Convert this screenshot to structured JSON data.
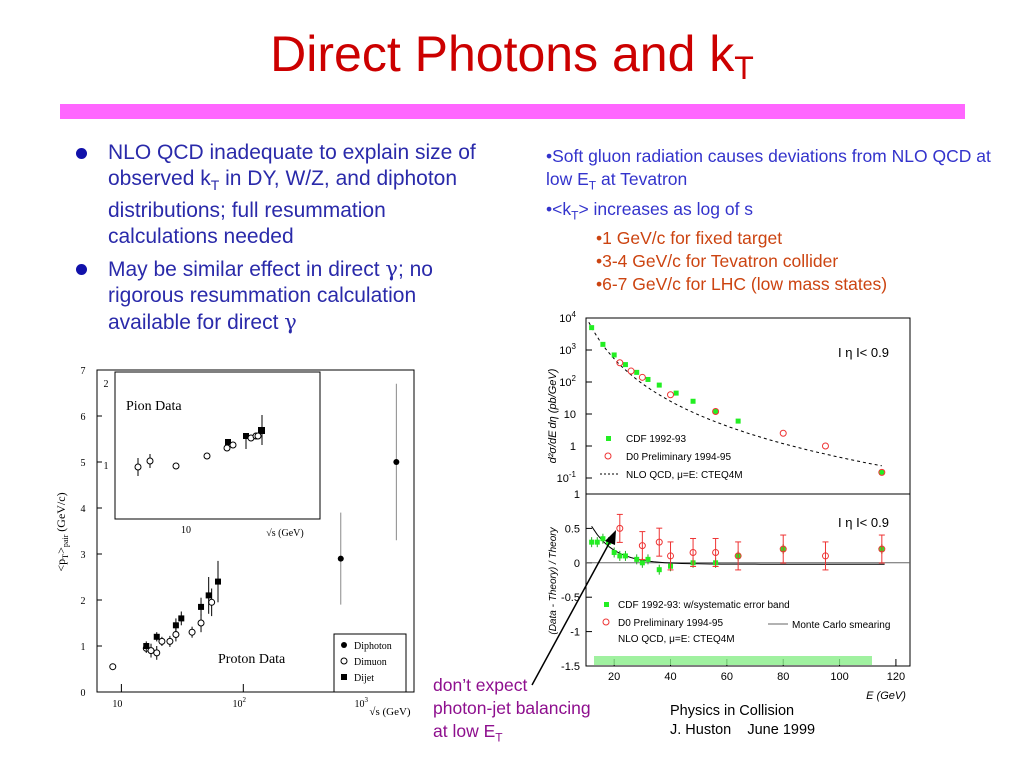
{
  "slide": {
    "title": "Direct Photons and k",
    "title_sub": "T",
    "accent_color": "#cc0000",
    "rule_color": "#ff66ff"
  },
  "bullets": {
    "b1_pre": "NLO QCD inadequate to explain size of observed k",
    "b1_sub": "T",
    "b1_post": " in DY, W/Z, and diphoton distributions; full resummation calculations needed",
    "b2_pre": "May be similar effect in direct ",
    "b2_sym1": "γ",
    "b2_mid": "; no rigorous  resummation calculation available for direct ",
    "b2_sym2": "γ"
  },
  "notes": {
    "n1": "•Soft gluon radiation causes deviations from NLO QCD at low E",
    "n1_sub": "T",
    "n1_post": " at Tevatron",
    "n2_pre": "•<k",
    "n2_sub": "T",
    "n2_post": "> increases as log of s",
    "n3": "•1 GeV/c for fixed target",
    "n4": "•3-4 GeV/c for Tevatron collider",
    "n5": "•6-7 GeV/c for LHC (low mass states)"
  },
  "annotation": {
    "line1": "don’t expect",
    "line2": "photon-jet balancing",
    "line3_pre": "at low E",
    "line3_sub": "T"
  },
  "credit": {
    "line1": "Physics in Collision",
    "line2": "J. Huston    June 1999"
  },
  "left_plot": {
    "y_label": "<p",
    "y_label_sub1": "T",
    "y_label_mid": ">",
    "y_label_sub2": "pair",
    "y_label_unit": " (GeV/c)",
    "x_label": "√s (GeV)",
    "y_ticks": [
      "0",
      "1",
      "2",
      "3",
      "4",
      "5",
      "6",
      "7"
    ],
    "x_ticks": [
      "10",
      "10",
      "10"
    ],
    "x_tick_exps": [
      "",
      "2",
      "3"
    ],
    "inset_title": "Pion Data",
    "inset_y_ticks": [
      "1",
      "2"
    ],
    "inset_x_tick": "10",
    "inset_x_label": "√s (GeV)",
    "main_label": "Proton Data",
    "legend": [
      "Diphoton",
      "Dimuon",
      "Dijet"
    ],
    "chart_data": {
      "type": "scatter",
      "title": "",
      "xlabel": "√s (GeV)",
      "ylabel": "<pT>pair (GeV/c)",
      "x_scale": "log",
      "ylim": [
        0,
        7
      ],
      "series": [
        {
          "name": "Diphoton",
          "x": [
            630,
            1800
          ],
          "y": [
            2.9,
            5.0
          ]
        },
        {
          "name": "Dimuon",
          "x": [
            8.5,
            16,
            17.5,
            19.5,
            21.5,
            25,
            28,
            38,
            45,
            55
          ],
          "y": [
            0.55,
            0.95,
            0.9,
            0.85,
            1.1,
            1.1,
            1.25,
            1.3,
            1.5,
            1.95
          ]
        },
        {
          "name": "Dijet",
          "x": [
            16,
            19.5,
            28,
            31,
            45,
            52,
            62
          ],
          "y": [
            1.0,
            1.2,
            1.45,
            1.6,
            1.85,
            2.1,
            2.4
          ]
        }
      ]
    }
  },
  "right_plot": {
    "top_y_label": "d²σ/dE",
    "top_y_label_rest": "dη (pb/GeV)",
    "top_y_ticks": [
      "10",
      "10",
      "10",
      "10",
      "1",
      "10"
    ],
    "top_y_exps": [
      "4",
      "3",
      "2",
      "",
      "",
      "-1"
    ],
    "top_eta": "I η I< 0.9",
    "top_legend": [
      "CDF 1992-93",
      "D0 Preliminary 1994-95",
      "NLO QCD, μ=E: CTEQ4M"
    ],
    "bottom_y_label": "(Data - Theory) / Theory",
    "bottom_y_ticks": [
      "1",
      "0.5",
      "0",
      "-0.5",
      "-1",
      "-1.5"
    ],
    "bottom_eta": "I η I< 0.9",
    "bottom_legend": [
      "CDF 1992-93: w/systematic error band",
      "D0 Preliminary 1994-95",
      "NLO QCD, μ=E: CTEQ4M",
      "Monte Carlo smearing"
    ],
    "x_ticks": [
      "20",
      "40",
      "60",
      "80",
      "100",
      "120"
    ],
    "x_label": "E",
    "x_label_rest": " (GeV)",
    "chart_data": {
      "top": {
        "type": "scatter",
        "xlabel": "ET (GeV)",
        "ylabel": "d²σ/dET dη (pb/GeV)",
        "y_scale": "log",
        "series": [
          {
            "name": "CDF 1992-93",
            "x": [
              12,
              16,
              20,
              24,
              28,
              32,
              36,
              42,
              48,
              56,
              64,
              115
            ],
            "y": [
              5000,
              1500,
              700,
              350,
              200,
              120,
              80,
              45,
              25,
              12,
              6,
              0.15
            ]
          },
          {
            "name": "D0 Preliminary 1994-95",
            "x": [
              22,
              26,
              30,
              40,
              56,
              80,
              95,
              115
            ],
            "y": [
              400,
              220,
              140,
              40,
              12,
              2.5,
              1.0,
              0.15
            ]
          }
        ]
      },
      "bottom": {
        "type": "scatter",
        "xlabel": "ET (GeV)",
        "ylabel": "(Data - Theory) / Theory",
        "ylim": [
          -1.5,
          1
        ],
        "series": [
          {
            "name": "CDF 1992-93",
            "x": [
              12,
              14,
              16,
              18,
              20,
              22,
              24,
              28,
              30,
              32,
              36,
              40,
              48,
              56,
              64,
              80,
              115
            ],
            "y": [
              0.3,
              0.3,
              0.35,
              0.3,
              0.15,
              0.1,
              0.1,
              0.05,
              0.0,
              0.05,
              -0.1,
              -0.05,
              0.0,
              0.0,
              0.1,
              0.2,
              0.2
            ]
          },
          {
            "name": "D0 Preliminary 1994-95",
            "x": [
              22,
              30,
              36,
              40,
              48,
              56,
              64,
              80,
              95,
              115
            ],
            "y": [
              0.5,
              0.25,
              0.3,
              0.1,
              0.15,
              0.15,
              0.1,
              0.2,
              0.1,
              0.2
            ]
          }
        ]
      }
    }
  }
}
